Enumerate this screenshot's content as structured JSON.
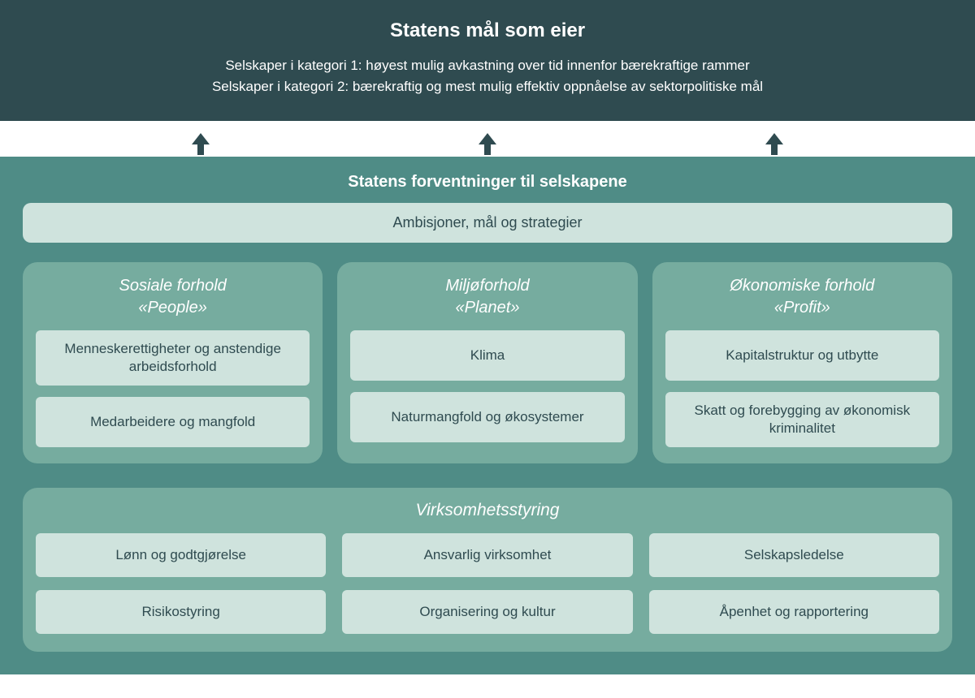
{
  "colors": {
    "header_bg": "#2f4b50",
    "lower_bg": "#4f8c86",
    "pillar_bg": "#76ac9f",
    "box_bg": "#cfe3dd",
    "text_dark": "#2f4b50"
  },
  "header": {
    "title": "Statens mål som eier",
    "line1": "Selskaper i kategori 1: høyest mulig avkastning over tid innenfor bærekraftige rammer",
    "line2": "Selskaper i kategori 2: bærekraftig og mest mulig effektiv oppnåelse av sektorpolitiske mål"
  },
  "lower": {
    "title": "Statens forventninger til selskapene",
    "wide_bar": "Ambisjoner, mål og strategier",
    "pillars": [
      {
        "heading_line1": "Sosiale forhold",
        "heading_line2": "«People»",
        "items": [
          "Menneskerettigheter og anstendige arbeidsforhold",
          "Medarbeidere og mangfold"
        ]
      },
      {
        "heading_line1": "Miljøforhold",
        "heading_line2": "«Planet»",
        "items": [
          "Klima",
          "Naturmangfold og økosystemer"
        ]
      },
      {
        "heading_line1": "Økonomiske forhold",
        "heading_line2": "«Profit»",
        "items": [
          "Kapitalstruktur og utbytte",
          "Skatt og forebygging av økonomisk kriminalitet"
        ]
      }
    ],
    "governance": {
      "title": "Virksomhetsstyring",
      "items": [
        "Lønn og godtgjørelse",
        "Ansvarlig virksomhet",
        "Selskapsledelse",
        "Risikostyring",
        "Organisering og kultur",
        "Åpenhet og rapportering"
      ]
    }
  }
}
